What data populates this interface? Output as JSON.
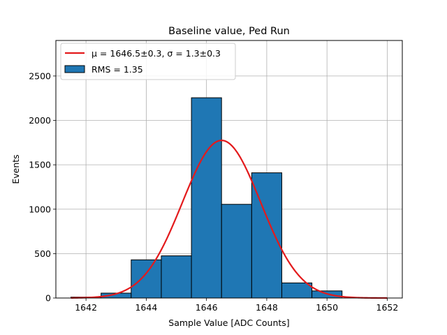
{
  "chart_data": {
    "type": "bar",
    "title": "Baseline value, Ped Run",
    "xlabel": "Sample Value [ADC Counts]",
    "ylabel": "Events",
    "xlim": [
      1641.0,
      1652.5
    ],
    "ylim": [
      0,
      2900
    ],
    "xticks": [
      1642,
      1644,
      1646,
      1648,
      1650,
      1652
    ],
    "yticks": [
      0,
      500,
      1000,
      1500,
      2000,
      2500
    ],
    "grid": true,
    "legend_position": "top-left",
    "histogram": {
      "name": "RMS = 1.35",
      "color": "#1f77b4",
      "bins": [
        {
          "x0": 1641.5,
          "x1": 1642.5,
          "value": 10
        },
        {
          "x0": 1642.5,
          "x1": 1643.5,
          "value": 55
        },
        {
          "x0": 1643.5,
          "x1": 1644.5,
          "value": 430
        },
        {
          "x0": 1644.5,
          "x1": 1645.5,
          "value": 475
        },
        {
          "x0": 1645.5,
          "x1": 1646.5,
          "value": 2255
        },
        {
          "x0": 1646.5,
          "x1": 1647.5,
          "value": 1055
        },
        {
          "x0": 1647.5,
          "x1": 1648.5,
          "value": 1410
        },
        {
          "x0": 1648.5,
          "x1": 1649.5,
          "value": 170
        },
        {
          "x0": 1649.5,
          "x1": 1650.5,
          "value": 80
        }
      ]
    },
    "fit": {
      "name_main": "μ = 1646.5±0.3, σ = 1.3±0.3",
      "mu": 1646.5,
      "sigma": 1.3,
      "amplitude": 1775,
      "x_range": [
        1641.5,
        1652.0
      ],
      "color": "#e31a1c"
    }
  }
}
